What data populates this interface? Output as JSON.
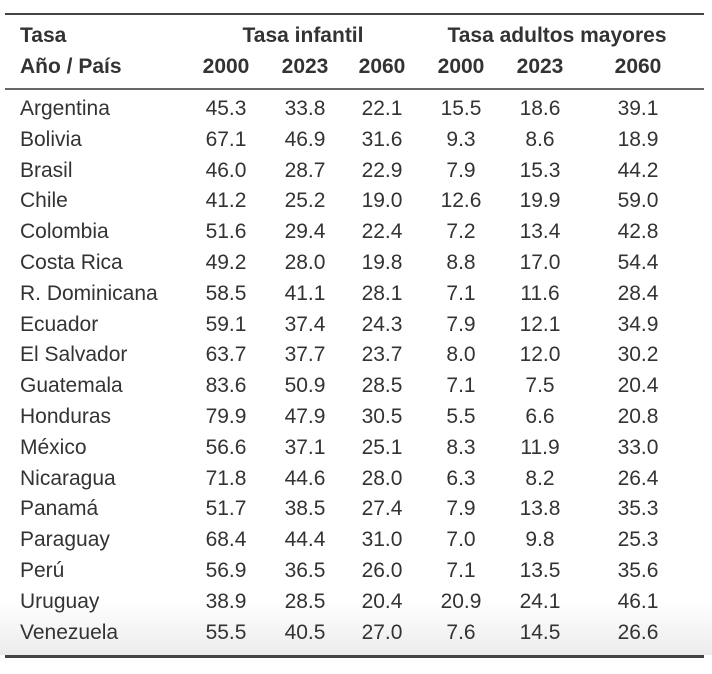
{
  "header": {
    "row1_label": "Tasa",
    "row2_label": "Año / País",
    "group1": "Tasa infantil",
    "group2": "Tasa adultos mayores",
    "years": [
      "2000",
      "2023",
      "2060",
      "2000",
      "2023",
      "2060"
    ]
  },
  "rows": [
    {
      "country": "Argentina",
      "values": [
        "45.3",
        "33.8",
        "22.1",
        "15.5",
        "18.6",
        "39.1"
      ]
    },
    {
      "country": "Bolivia",
      "values": [
        "67.1",
        "46.9",
        "31.6",
        "9.3",
        "8.6",
        "18.9"
      ]
    },
    {
      "country": "Brasil",
      "values": [
        "46.0",
        "28.7",
        "22.9",
        "7.9",
        "15.3",
        "44.2"
      ]
    },
    {
      "country": "Chile",
      "values": [
        "41.2",
        "25.2",
        "19.0",
        "12.6",
        "19.9",
        "59.0"
      ]
    },
    {
      "country": "Colombia",
      "values": [
        "51.6",
        "29.4",
        "22.4",
        "7.2",
        "13.4",
        "42.8"
      ]
    },
    {
      "country": "Costa Rica",
      "values": [
        "49.2",
        "28.0",
        "19.8",
        "8.8",
        "17.0",
        "54.4"
      ]
    },
    {
      "country": "R. Dominicana",
      "values": [
        "58.5",
        "41.1",
        "28.1",
        "7.1",
        "11.6",
        "28.4"
      ]
    },
    {
      "country": "Ecuador",
      "values": [
        "59.1",
        "37.4",
        "24.3",
        "7.9",
        "12.1",
        "34.9"
      ]
    },
    {
      "country": "El Salvador",
      "values": [
        "63.7",
        "37.7",
        "23.7",
        "8.0",
        "12.0",
        "30.2"
      ]
    },
    {
      "country": "Guatemala",
      "values": [
        "83.6",
        "50.9",
        "28.5",
        "7.1",
        "7.5",
        "20.4"
      ]
    },
    {
      "country": "Honduras",
      "values": [
        "79.9",
        "47.9",
        "30.5",
        "5.5",
        "6.6",
        "20.8"
      ]
    },
    {
      "country": "México",
      "values": [
        "56.6",
        "37.1",
        "25.1",
        "8.3",
        "11.9",
        "33.0"
      ]
    },
    {
      "country": "Nicaragua",
      "values": [
        "71.8",
        "44.6",
        "28.0",
        "6.3",
        "8.2",
        "26.4"
      ]
    },
    {
      "country": "Panamá",
      "values": [
        "51.7",
        "38.5",
        "27.4",
        "7.9",
        "13.8",
        "35.3"
      ]
    },
    {
      "country": "Paraguay",
      "values": [
        "68.4",
        "44.4",
        "31.0",
        "7.0",
        "9.8",
        "25.3"
      ]
    },
    {
      "country": "Perú",
      "values": [
        "56.9",
        "36.5",
        "26.0",
        "7.1",
        "13.5",
        "35.6"
      ]
    },
    {
      "country": "Uruguay",
      "values": [
        "38.9",
        "28.5",
        "20.4",
        "20.9",
        "24.1",
        "46.1"
      ]
    },
    {
      "country": "Venezuela",
      "values": [
        "55.5",
        "40.5",
        "27.0",
        "7.6",
        "14.5",
        "26.6"
      ]
    }
  ]
}
